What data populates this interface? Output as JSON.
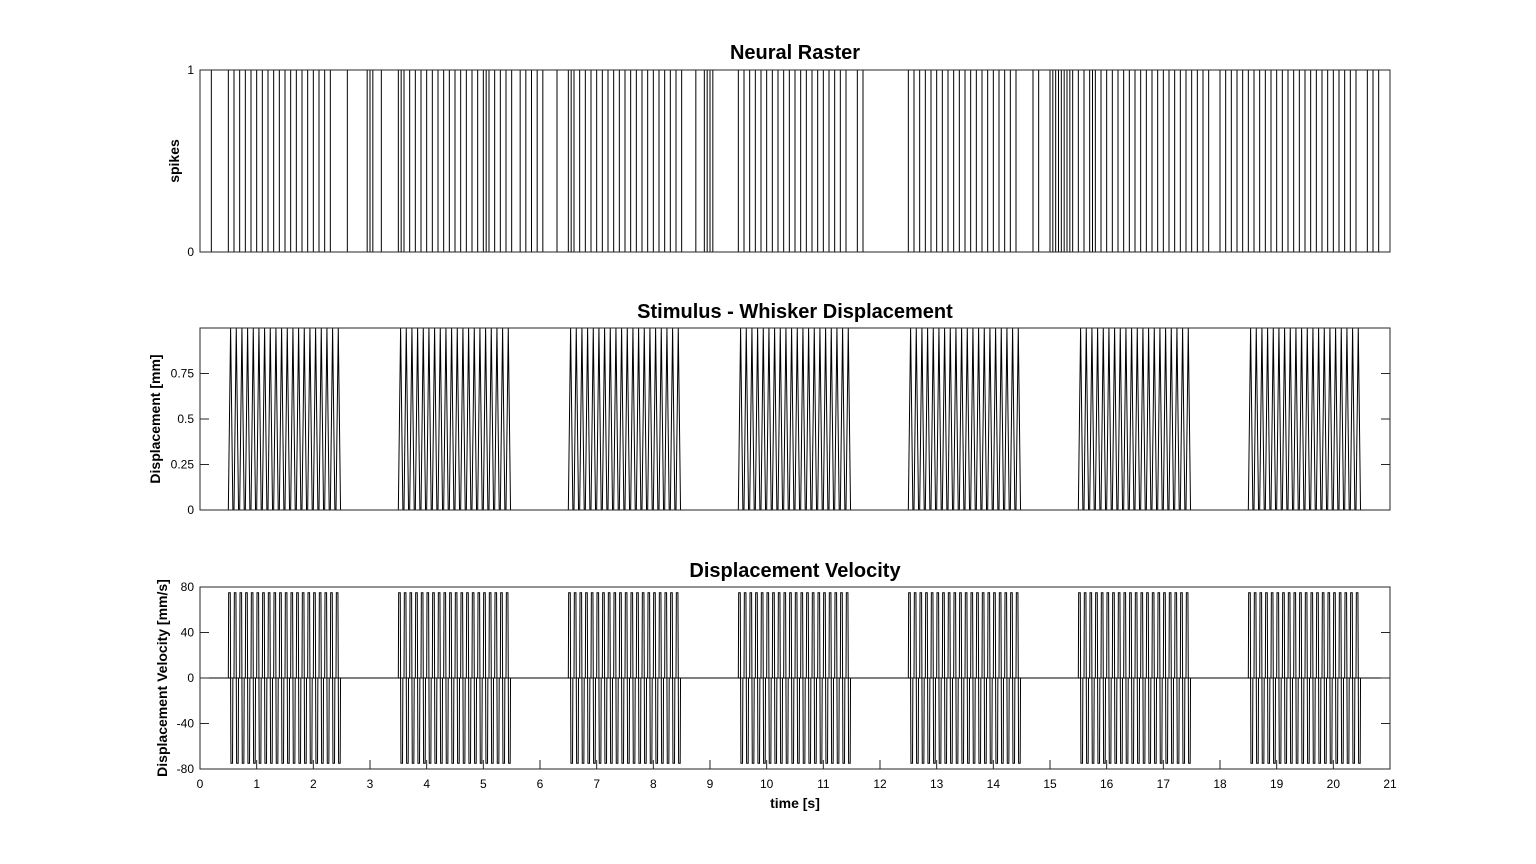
{
  "chart_data": [
    {
      "type": "line",
      "title": "Neural Raster",
      "xlabel": "",
      "ylabel": "spikes",
      "xlim": [
        0,
        21
      ],
      "ylim": [
        0,
        1
      ],
      "yticks": [
        0,
        1
      ],
      "ytick_labels": [
        "0",
        "1"
      ],
      "x_tick_labels_shown": false,
      "series": [
        {
          "style": "vertical spike lines (0 to 1)",
          "spike_times": [
            0.0,
            0.2,
            0.5,
            0.6,
            0.7,
            0.8,
            0.9,
            1.0,
            1.1,
            1.2,
            1.3,
            1.4,
            1.5,
            1.6,
            1.7,
            1.8,
            1.9,
            2.0,
            2.1,
            2.2,
            2.3,
            2.6,
            2.95,
            3.0,
            3.05,
            3.2,
            3.5,
            3.55,
            3.6,
            3.7,
            3.8,
            3.9,
            4.0,
            4.1,
            4.2,
            4.3,
            4.4,
            4.5,
            4.6,
            4.7,
            4.8,
            4.9,
            5.0,
            5.05,
            5.1,
            5.2,
            5.3,
            5.4,
            5.5,
            5.65,
            5.75,
            5.85,
            5.95,
            6.05,
            6.3,
            6.5,
            6.55,
            6.6,
            6.7,
            6.8,
            6.9,
            7.0,
            7.1,
            7.2,
            7.3,
            7.4,
            7.5,
            7.6,
            7.7,
            7.8,
            7.9,
            8.0,
            8.1,
            8.2,
            8.3,
            8.4,
            8.5,
            8.75,
            8.9,
            8.95,
            9.0,
            9.05,
            9.5,
            9.6,
            9.7,
            9.8,
            9.9,
            10.0,
            10.1,
            10.2,
            10.3,
            10.4,
            10.5,
            10.6,
            10.7,
            10.8,
            10.9,
            11.0,
            11.1,
            11.2,
            11.3,
            11.4,
            11.6,
            11.7,
            12.5,
            12.6,
            12.7,
            12.8,
            12.9,
            13.0,
            13.1,
            13.2,
            13.3,
            13.4,
            13.5,
            13.6,
            13.7,
            13.8,
            13.9,
            14.0,
            14.1,
            14.2,
            14.3,
            14.4,
            14.7,
            14.8,
            15.0,
            15.05,
            15.1,
            15.15,
            15.2,
            15.25,
            15.3,
            15.35,
            15.4,
            15.5,
            15.6,
            15.7,
            15.75,
            15.8,
            15.9,
            16.0,
            16.1,
            16.2,
            16.3,
            16.4,
            16.5,
            16.6,
            16.7,
            16.8,
            16.9,
            17.0,
            17.1,
            17.2,
            17.3,
            17.4,
            17.5,
            17.6,
            17.7,
            17.8,
            18.0,
            18.1,
            18.2,
            18.3,
            18.4,
            18.5,
            18.6,
            18.7,
            18.8,
            18.9,
            19.0,
            19.1,
            19.2,
            19.3,
            19.4,
            19.5,
            19.6,
            19.7,
            19.8,
            19.9,
            20.0,
            20.1,
            20.2,
            20.3,
            20.4,
            20.6,
            20.7,
            20.8
          ]
        }
      ]
    },
    {
      "type": "line",
      "title": "Stimulus - Whisker Displacement",
      "xlabel": "",
      "ylabel": "Displacement [mm]",
      "xlim": [
        0,
        21
      ],
      "ylim": [
        0,
        1
      ],
      "yticks": [
        0,
        0.25,
        0.5,
        0.75
      ],
      "ytick_labels": [
        "0",
        "0.25",
        "0.5",
        "0.75"
      ],
      "x_tick_labels_shown": false,
      "series": [
        {
          "style": "triangular pulse trains",
          "amplitude": 1,
          "pulse_width": 0.08,
          "pulse_period": 0.1,
          "train_starts": [
            0.5,
            3.5,
            6.5,
            9.5,
            12.5,
            15.5,
            18.5
          ],
          "pulses_per_train": 20
        }
      ]
    },
    {
      "type": "line",
      "title": "Displacement Velocity",
      "xlabel": "time [s]",
      "ylabel": "Displacement Velocity [mm/s]",
      "xlim": [
        0,
        21
      ],
      "ylim": [
        -80,
        80
      ],
      "yticks": [
        -80,
        -40,
        0,
        40,
        80
      ],
      "ytick_labels": [
        "-80",
        "-40",
        "0",
        "40",
        "80"
      ],
      "xticks": [
        0,
        1,
        2,
        3,
        4,
        5,
        6,
        7,
        8,
        9,
        10,
        11,
        12,
        13,
        14,
        15,
        16,
        17,
        18,
        19,
        20,
        21
      ],
      "xtick_labels": [
        "0",
        "1",
        "2",
        "3",
        "4",
        "5",
        "6",
        "7",
        "8",
        "9",
        "10",
        "11",
        "12",
        "13",
        "14",
        "15",
        "16",
        "17",
        "18",
        "19",
        "20",
        "21"
      ],
      "series": [
        {
          "style": "biphasic velocity pulses",
          "amplitude": 75,
          "train_starts": [
            0.5,
            3.5,
            6.5,
            9.5,
            12.5,
            15.5,
            18.5
          ],
          "pulses_per_train": 20
        }
      ]
    }
  ]
}
